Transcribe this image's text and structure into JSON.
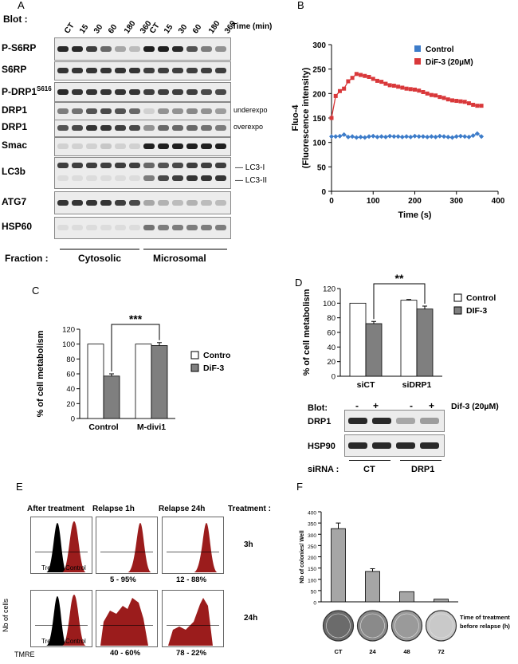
{
  "panel_labels": {
    "A": "A",
    "B": "B",
    "C": "C",
    "D": "D",
    "E": "E",
    "F": "F"
  },
  "panelA": {
    "blot_label": "Blot :",
    "lanes": [
      "CT",
      "15",
      "30",
      "60",
      "180",
      "360",
      "CT",
      "15",
      "30",
      "60",
      "180",
      "360"
    ],
    "time_label": "Time (min)",
    "rows": [
      {
        "name": "P-S6RP",
        "sup": "",
        "note": ""
      },
      {
        "name": "S6RP",
        "sup": "",
        "note": ""
      },
      {
        "name": "P-DRP1",
        "sup": "S616",
        "note": ""
      },
      {
        "name": "DRP1",
        "sup": "",
        "note": "underexpo"
      },
      {
        "name": "DRP1",
        "sup": "",
        "note": "overexpo"
      },
      {
        "name": "Smac",
        "sup": "",
        "note": ""
      },
      {
        "name": "LC3b",
        "sup": "",
        "note": ""
      },
      {
        "name": "ATG7",
        "sup": "",
        "note": ""
      },
      {
        "name": "HSP60",
        "sup": "",
        "note": ""
      }
    ],
    "lc3_labels": [
      "LC3-I",
      "LC3-II"
    ],
    "fraction_label": "Fraction :",
    "fractions": [
      "Cytosolic",
      "Microsomal"
    ]
  },
  "chart_data": [
    {
      "id": "B",
      "type": "line",
      "title": "",
      "xlabel": "Time (s)",
      "ylabel": "Fluo-4 (Fluorescence intensity)",
      "ylabel_lines": [
        "Fluo-4",
        "(Fluorescence intensity)"
      ],
      "xlim": [
        0,
        400
      ],
      "ylim": [
        0,
        300
      ],
      "xticks": [
        0,
        100,
        200,
        300,
        400
      ],
      "yticks": [
        0,
        50,
        100,
        150,
        200,
        250,
        300
      ],
      "colors": {
        "Control": "#3d7cc9",
        "DiF-3 (20µM)": "#d9383a"
      },
      "series": [
        {
          "name": "Control",
          "marker": "diamond",
          "x": [
            0,
            10,
            20,
            30,
            40,
            50,
            60,
            70,
            80,
            90,
            100,
            110,
            120,
            130,
            140,
            150,
            160,
            170,
            180,
            190,
            200,
            210,
            220,
            230,
            240,
            250,
            260,
            270,
            280,
            290,
            300,
            310,
            320,
            330,
            340,
            350,
            360
          ],
          "y": [
            112,
            112,
            113,
            116,
            111,
            112,
            110,
            111,
            110,
            112,
            113,
            111,
            112,
            111,
            113,
            112,
            112,
            111,
            112,
            111,
            113,
            112,
            112,
            111,
            112,
            111,
            113,
            112,
            111,
            110,
            112,
            113,
            112,
            111,
            114,
            118,
            112
          ]
        },
        {
          "name": "DiF-3 (20µM)",
          "marker": "square",
          "x": [
            0,
            10,
            20,
            30,
            40,
            50,
            60,
            70,
            80,
            90,
            100,
            110,
            120,
            130,
            140,
            150,
            160,
            170,
            180,
            190,
            200,
            210,
            220,
            230,
            240,
            250,
            260,
            270,
            280,
            290,
            300,
            310,
            320,
            330,
            340,
            350,
            360
          ],
          "y": [
            150,
            195,
            205,
            210,
            225,
            232,
            240,
            238,
            236,
            234,
            230,
            226,
            224,
            220,
            217,
            216,
            214,
            212,
            210,
            209,
            208,
            206,
            203,
            200,
            197,
            196,
            193,
            191,
            188,
            186,
            185,
            184,
            183,
            180,
            177,
            175,
            175
          ]
        }
      ]
    },
    {
      "id": "C",
      "type": "bar",
      "xlabel": "",
      "ylabel": "% of cell metabolism",
      "categories": [
        "Control",
        "M-divi1"
      ],
      "ylim": [
        0,
        120
      ],
      "yticks": [
        0,
        20,
        40,
        60,
        80,
        100,
        120
      ],
      "series": [
        {
          "name": "Control",
          "values": [
            100,
            100
          ],
          "errors": [
            0,
            0
          ],
          "color": "#ffffff"
        },
        {
          "name": "DiF-3",
          "values": [
            57,
            98
          ],
          "errors": [
            3,
            4
          ],
          "color": "#7f7f7f"
        }
      ],
      "significance": "***"
    },
    {
      "id": "D",
      "type": "bar",
      "xlabel": "",
      "ylabel": "% of cell metabolism",
      "categories": [
        "siCT",
        "siDRP1"
      ],
      "ylim": [
        0,
        120
      ],
      "yticks": [
        0,
        20,
        40,
        60,
        80,
        100,
        120
      ],
      "series": [
        {
          "name": "Control",
          "values": [
            100,
            104
          ],
          "errors": [
            0,
            1
          ],
          "color": "#ffffff"
        },
        {
          "name": "DIF-3",
          "values": [
            72,
            92
          ],
          "errors": [
            3,
            4
          ],
          "color": "#7f7f7f"
        }
      ],
      "significance": "**"
    },
    {
      "id": "F",
      "type": "bar",
      "xlabel": "",
      "ylabel": "Nb of colonies/ Well",
      "categories": [
        "CT",
        "24",
        "48",
        "72"
      ],
      "ylim": [
        0,
        400
      ],
      "yticks": [
        0,
        50,
        100,
        150,
        200,
        250,
        300,
        350,
        400
      ],
      "series": [
        {
          "name": "colonies",
          "values": [
            325,
            135,
            45,
            12
          ],
          "errors": [
            25,
            12,
            0,
            0
          ],
          "color": "#a6a6a6"
        }
      ],
      "side_label_lines": [
        "Time of treatment",
        "before relapse (h)"
      ]
    }
  ],
  "panelD": {
    "blot_label": "Blot:",
    "signs": [
      "-",
      "+",
      "-",
      "+"
    ],
    "treatment": "Dif-3 (20µM)",
    "rows": [
      "DRP1",
      "HSP90"
    ],
    "sirna_label": "siRNA :",
    "sirna_groups": [
      "CT",
      "DRP1"
    ]
  },
  "panelE": {
    "col_headers": [
      "After treatment",
      "Relapse 1h",
      "Relapse 24h"
    ],
    "treatment_label": "Treatment :",
    "row_labels": [
      "3h",
      "24h"
    ],
    "treated_label": "Treated",
    "control_label": "Control",
    "percents": [
      "5 - 95%",
      "12 - 88%",
      "40 - 60%",
      "78 - 22%"
    ],
    "y_axis": "Nb of cells",
    "x_axis": "TMRE",
    "colors": {
      "treated": "#000000",
      "control": "#9b1c1c"
    }
  }
}
